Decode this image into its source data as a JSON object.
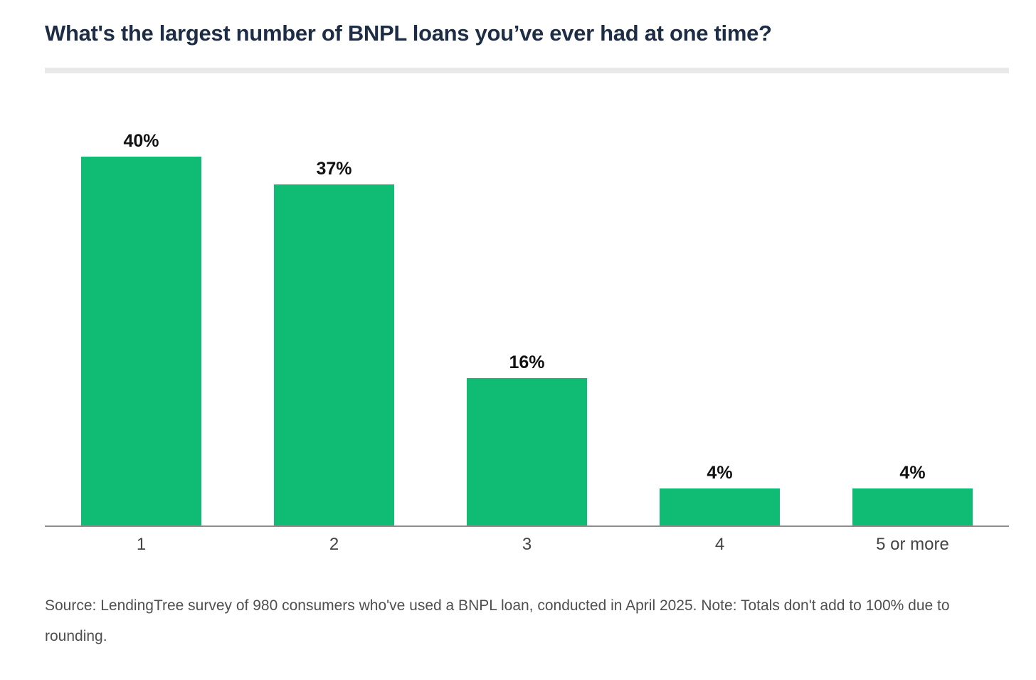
{
  "page": {
    "title": "What's the largest number of BNPL loans you’ve ever had at one time?",
    "source_note": "Source: LendingTree survey of 980 consumers who've used a BNPL loan, conducted in April 2025. Note: Totals don't add to 100% due to rounding."
  },
  "chart_data": {
    "type": "bar",
    "title": "What's the largest number of BNPL loans you’ve ever had at one time?",
    "categories": [
      "1",
      "2",
      "3",
      "4",
      "5 or more"
    ],
    "values": [
      40,
      37,
      16,
      4,
      4
    ],
    "value_suffix": "%",
    "xlabel": "",
    "ylabel": "",
    "ylim": [
      0,
      43
    ],
    "grid": false,
    "legend": "none",
    "bar_color": "#10bc74",
    "value_label_color": "#111111",
    "tick_label_color": "#454545",
    "axis_line_color": "#8e8e8e",
    "title_color": "#1e2d46",
    "divider_color": "#e9e9e9"
  }
}
